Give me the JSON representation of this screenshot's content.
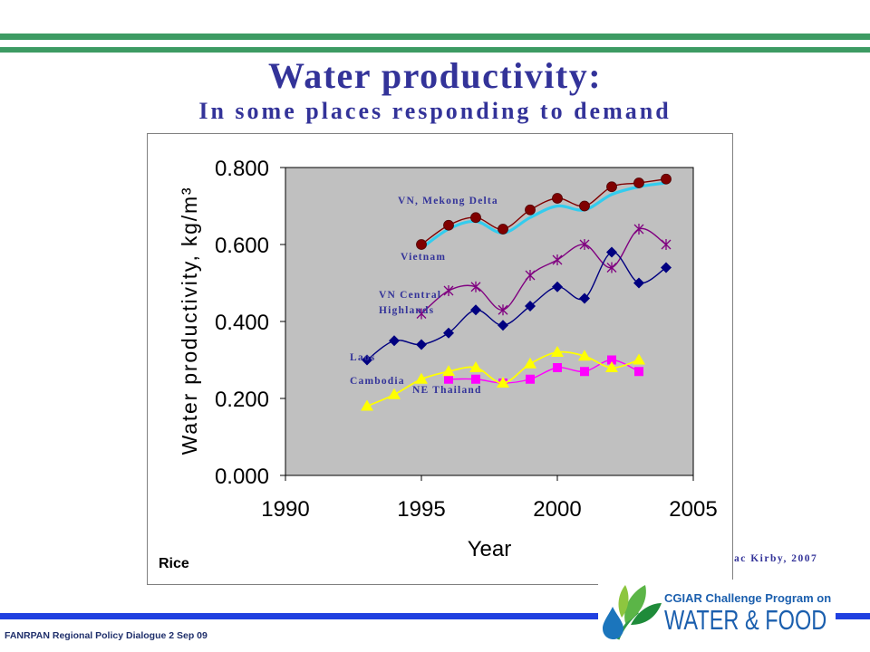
{
  "header": {
    "title": "Water productivity:",
    "subtitle": "In some places responding to demand"
  },
  "chart_data": {
    "type": "line",
    "crop_label": "Rice",
    "xlabel": "Year",
    "ylabel": "Water productivity, kg/m³",
    "xlim": [
      1990,
      2005
    ],
    "ylim": [
      0,
      0.8
    ],
    "xticks": [
      1990,
      1995,
      2000,
      2005
    ],
    "xtick_labels": [
      "1990",
      "1995",
      "2000",
      "2005"
    ],
    "yticks": [
      0,
      0.2,
      0.4,
      0.6,
      0.8
    ],
    "ytick_labels": [
      "0.000",
      "0.200",
      "0.400",
      "0.600",
      "0.800"
    ],
    "grid": false,
    "legend": "inline labels",
    "plot_background": "#c0c0c0",
    "line_style": "smoothed",
    "series": [
      {
        "name": "Vietnam",
        "color": "#33ccee",
        "marker": "none",
        "x": [
          1995,
          1996,
          1997,
          1998,
          1999,
          2000,
          2001,
          2002,
          2003,
          2004
        ],
        "y": [
          0.59,
          0.64,
          0.66,
          0.63,
          0.67,
          0.7,
          0.69,
          0.73,
          0.75,
          0.76
        ]
      },
      {
        "name": "VN, Mekong Delta",
        "color": "#800000",
        "marker": "circle",
        "x": [
          1995,
          1996,
          1997,
          1998,
          1999,
          2000,
          2001,
          2002,
          2003,
          2004
        ],
        "y": [
          0.6,
          0.65,
          0.67,
          0.64,
          0.69,
          0.72,
          0.7,
          0.75,
          0.76,
          0.77
        ]
      },
      {
        "name": "VN Central Highlands",
        "color": "#800080",
        "marker": "asterisk",
        "x": [
          1995,
          1996,
          1997,
          1998,
          1999,
          2000,
          2001,
          2002,
          2003,
          2004
        ],
        "y": [
          0.42,
          0.48,
          0.49,
          0.43,
          0.52,
          0.56,
          0.6,
          0.54,
          0.64,
          0.6
        ]
      },
      {
        "name": "Laos",
        "color": "#000080",
        "marker": "diamond",
        "x": [
          1993,
          1994,
          1995,
          1996,
          1997,
          1998,
          1999,
          2000,
          2001,
          2002,
          2003,
          2004
        ],
        "y": [
          0.3,
          0.35,
          0.34,
          0.37,
          0.43,
          0.39,
          0.44,
          0.49,
          0.46,
          0.58,
          0.5,
          0.54
        ]
      },
      {
        "name": "NE Thailand",
        "color": "#ff00ff",
        "marker": "square",
        "x": [
          1996,
          1997,
          1998,
          1999,
          2000,
          2001,
          2002,
          2003
        ],
        "y": [
          0.25,
          0.25,
          0.24,
          0.25,
          0.28,
          0.27,
          0.3,
          0.27
        ]
      },
      {
        "name": "Cambodia",
        "color": "#ffff00",
        "marker": "triangle",
        "x": [
          1993,
          1994,
          1995,
          1996,
          1997,
          1998,
          1999,
          2000,
          2001,
          2002,
          2003
        ],
        "y": [
          0.18,
          0.21,
          0.25,
          0.27,
          0.28,
          0.24,
          0.29,
          0.32,
          0.31,
          0.28,
          0.3
        ]
      }
    ]
  },
  "source_fragment": "ac Kirby, 2007",
  "footer": {
    "text": "FANRPAN Regional Policy Dialogue 2 Sep 09"
  },
  "logo": {
    "line1": "CGIAR Challenge Program on",
    "line2": "WATER & FOOD"
  }
}
